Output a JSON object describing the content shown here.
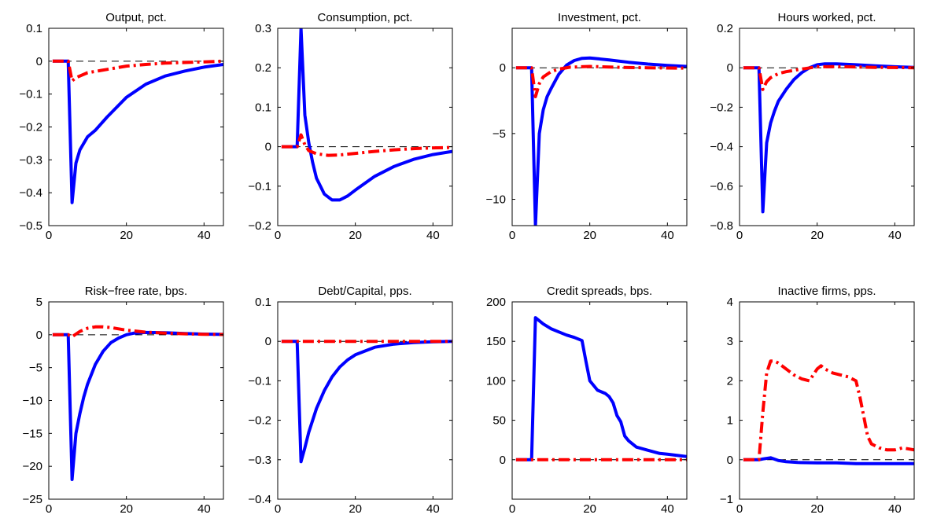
{
  "chart_data": [
    {
      "type": "line",
      "title": "Output, pct.",
      "xlim": [
        0,
        45
      ],
      "ylim": [
        -0.5,
        0.1
      ],
      "xticks": [
        0,
        20,
        40
      ],
      "yticks": [
        -0.5,
        -0.4,
        -0.3,
        -0.2,
        -0.1,
        0,
        0.1
      ],
      "xtick_labels": [
        "0",
        "20",
        "40"
      ],
      "ytick_labels": [
        "−0.5",
        "−0.4",
        "−0.3",
        "−0.2",
        "−0.1",
        "0",
        "0.1"
      ],
      "series": [
        {
          "color": "#0000ff",
          "style": "solid",
          "x": [
            1,
            5,
            6,
            7,
            8,
            10,
            12,
            15,
            20,
            25,
            30,
            35,
            40,
            45
          ],
          "y": [
            0,
            0,
            -0.43,
            -0.31,
            -0.27,
            -0.23,
            -0.21,
            -0.17,
            -0.11,
            -0.07,
            -0.045,
            -0.03,
            -0.018,
            -0.01
          ]
        },
        {
          "color": "#ff0000",
          "style": "dashdot",
          "x": [
            1,
            5,
            6,
            7,
            10,
            15,
            20,
            25,
            30,
            35,
            40,
            45
          ],
          "y": [
            0,
            0,
            -0.06,
            -0.05,
            -0.035,
            -0.025,
            -0.015,
            -0.01,
            -0.006,
            -0.004,
            -0.002,
            0
          ]
        }
      ]
    },
    {
      "type": "line",
      "title": "Consumption, pct.",
      "xlim": [
        0,
        45
      ],
      "ylim": [
        -0.2,
        0.3
      ],
      "xticks": [
        0,
        20,
        40
      ],
      "yticks": [
        -0.2,
        -0.1,
        0,
        0.1,
        0.2,
        0.3
      ],
      "xtick_labels": [
        "0",
        "20",
        "40"
      ],
      "ytick_labels": [
        "−0.2",
        "−0.1",
        "0",
        "0.1",
        "0.2",
        "0.3"
      ],
      "series": [
        {
          "color": "#0000ff",
          "style": "solid",
          "x": [
            1,
            5,
            6,
            7,
            8,
            9,
            10,
            12,
            14,
            16,
            18,
            20,
            25,
            30,
            35,
            40,
            45
          ],
          "y": [
            0,
            0,
            0.3,
            0.08,
            0.01,
            -0.04,
            -0.08,
            -0.12,
            -0.135,
            -0.135,
            -0.125,
            -0.11,
            -0.075,
            -0.05,
            -0.032,
            -0.02,
            -0.012
          ]
        },
        {
          "color": "#ff0000",
          "style": "dashdot",
          "x": [
            1,
            5,
            6,
            7,
            8,
            10,
            13,
            16,
            20,
            25,
            30,
            35,
            40,
            45
          ],
          "y": [
            0,
            0,
            0.03,
            0.005,
            -0.01,
            -0.018,
            -0.022,
            -0.021,
            -0.017,
            -0.012,
            -0.008,
            -0.005,
            -0.003,
            -0.002
          ]
        }
      ]
    },
    {
      "type": "line",
      "title": "Investment, pct.",
      "xlim": [
        0,
        45
      ],
      "ylim": [
        -12,
        3
      ],
      "xticks": [
        0,
        20,
        40
      ],
      "yticks": [
        -10,
        -5,
        0
      ],
      "xtick_labels": [
        "0",
        "20",
        "40"
      ],
      "ytick_labels": [
        "−10",
        "−5",
        "0"
      ],
      "series": [
        {
          "color": "#0000ff",
          "style": "solid",
          "x": [
            1,
            5,
            6,
            7,
            8,
            9,
            10,
            12,
            14,
            16,
            18,
            20,
            25,
            30,
            35,
            40,
            45
          ],
          "y": [
            0,
            0,
            -12,
            -5,
            -3.2,
            -2.2,
            -1.6,
            -0.5,
            0.2,
            0.55,
            0.72,
            0.75,
            0.6,
            0.42,
            0.28,
            0.18,
            0.1
          ]
        },
        {
          "color": "#ff0000",
          "style": "dashdot",
          "x": [
            1,
            5,
            6,
            7,
            8,
            10,
            12,
            15,
            20,
            25,
            30,
            35,
            40,
            45
          ],
          "y": [
            0,
            0,
            -2.2,
            -1.2,
            -0.7,
            -0.3,
            -0.1,
            0.05,
            0.1,
            0.06,
            0.02,
            0,
            -0.02,
            -0.03
          ]
        }
      ]
    },
    {
      "type": "line",
      "title": "Hours worked, pct.",
      "xlim": [
        0,
        45
      ],
      "ylim": [
        -0.8,
        0.2
      ],
      "xticks": [
        0,
        20,
        40
      ],
      "yticks": [
        -0.8,
        -0.6,
        -0.4,
        -0.2,
        0,
        0.2
      ],
      "xtick_labels": [
        "0",
        "20",
        "40"
      ],
      "ytick_labels": [
        "−0.8",
        "−0.6",
        "−0.4",
        "−0.2",
        "0",
        "0.2"
      ],
      "series": [
        {
          "color": "#0000ff",
          "style": "solid",
          "x": [
            1,
            5,
            6,
            7,
            8,
            9,
            10,
            12,
            14,
            16,
            18,
            20,
            22,
            25,
            30,
            35,
            40,
            45
          ],
          "y": [
            0,
            0,
            -0.73,
            -0.38,
            -0.28,
            -0.22,
            -0.17,
            -0.11,
            -0.06,
            -0.025,
            0,
            0.015,
            0.02,
            0.02,
            0.015,
            0.01,
            0.005,
            0.002
          ]
        },
        {
          "color": "#ff0000",
          "style": "dashdot",
          "x": [
            1,
            5,
            6,
            7,
            8,
            10,
            12,
            15,
            20,
            25,
            30,
            35,
            40,
            45
          ],
          "y": [
            0,
            0,
            -0.11,
            -0.07,
            -0.05,
            -0.03,
            -0.02,
            -0.01,
            0.005,
            0.006,
            0.004,
            0.002,
            0.001,
            0
          ]
        }
      ]
    },
    {
      "type": "line",
      "title": "Risk−free rate, bps.",
      "xlim": [
        0,
        45
      ],
      "ylim": [
        -25,
        5
      ],
      "xticks": [
        0,
        20,
        40
      ],
      "yticks": [
        -25,
        -20,
        -15,
        -10,
        -5,
        0,
        5
      ],
      "xtick_labels": [
        "0",
        "20",
        "40"
      ],
      "ytick_labels": [
        "−25",
        "−20",
        "−15",
        "−10",
        "−5",
        "0",
        "5"
      ],
      "series": [
        {
          "color": "#0000ff",
          "style": "solid",
          "x": [
            1,
            5,
            6,
            7,
            8,
            9,
            10,
            12,
            14,
            16,
            18,
            20,
            22,
            25,
            30,
            35,
            40,
            45
          ],
          "y": [
            0,
            0,
            -22,
            -15,
            -12,
            -9.5,
            -7.5,
            -4.5,
            -2.5,
            -1.2,
            -0.5,
            0,
            0.25,
            0.35,
            0.3,
            0.2,
            0.1,
            0.05
          ]
        },
        {
          "color": "#ff0000",
          "style": "dashdot",
          "x": [
            1,
            5,
            6,
            8,
            10,
            12,
            14,
            16,
            18,
            20,
            25,
            30,
            35,
            40,
            45
          ],
          "y": [
            0,
            0,
            -0.3,
            0.5,
            1.0,
            1.2,
            1.2,
            1.1,
            0.9,
            0.7,
            0.4,
            0.25,
            0.15,
            0.08,
            0.04
          ]
        }
      ]
    },
    {
      "type": "line",
      "title": "Debt/Capital, pps.",
      "xlim": [
        0,
        45
      ],
      "ylim": [
        -0.4,
        0.1
      ],
      "xticks": [
        0,
        20,
        40
      ],
      "yticks": [
        -0.4,
        -0.3,
        -0.2,
        -0.1,
        0,
        0.1
      ],
      "xtick_labels": [
        "0",
        "20",
        "40"
      ],
      "ytick_labels": [
        "−0.4",
        "−0.3",
        "−0.2",
        "−0.1",
        "0",
        "0.1"
      ],
      "series": [
        {
          "color": "#0000ff",
          "style": "solid",
          "x": [
            1,
            5,
            6,
            7,
            8,
            10,
            12,
            14,
            16,
            18,
            20,
            25,
            30,
            35,
            40,
            45
          ],
          "y": [
            0,
            0,
            -0.305,
            -0.27,
            -0.23,
            -0.17,
            -0.125,
            -0.09,
            -0.065,
            -0.047,
            -0.034,
            -0.015,
            -0.007,
            -0.003,
            -0.001,
            0
          ]
        },
        {
          "color": "#ff0000",
          "style": "dashdot",
          "x": [
            1,
            5,
            10,
            20,
            30,
            40,
            45
          ],
          "y": [
            0,
            0,
            0,
            0,
            0,
            0,
            0
          ]
        }
      ]
    },
    {
      "type": "line",
      "title": "Credit spreads, bps.",
      "xlim": [
        0,
        45
      ],
      "ylim": [
        -50,
        200
      ],
      "xticks": [
        0,
        20,
        40
      ],
      "yticks": [
        0,
        50,
        100,
        150,
        200
      ],
      "xtick_labels": [
        "0",
        "20",
        "40"
      ],
      "ytick_labels": [
        "0",
        "50",
        "100",
        "150",
        "200"
      ],
      "series": [
        {
          "color": "#0000ff",
          "style": "solid",
          "x": [
            1,
            5,
            6,
            8,
            10,
            12,
            14,
            16,
            18,
            19,
            20,
            21,
            22,
            24,
            25,
            26,
            27,
            28,
            29,
            30,
            32,
            35,
            38,
            40,
            45
          ],
          "y": [
            0,
            0,
            180,
            172,
            166,
            162,
            158,
            155,
            151,
            125,
            100,
            94,
            88,
            84,
            80,
            72,
            56,
            48,
            30,
            24,
            16,
            12,
            8,
            7,
            4
          ]
        },
        {
          "color": "#ff0000",
          "style": "dashdot",
          "x": [
            1,
            5,
            10,
            20,
            30,
            40,
            45
          ],
          "y": [
            0,
            0,
            0,
            0,
            0,
            0,
            0
          ]
        }
      ]
    },
    {
      "type": "line",
      "title": "Inactive firms, pps.",
      "xlim": [
        0,
        45
      ],
      "ylim": [
        -1,
        4
      ],
      "xticks": [
        0,
        20,
        40
      ],
      "yticks": [
        -1,
        0,
        1,
        2,
        3,
        4
      ],
      "xtick_labels": [
        "0",
        "20",
        "40"
      ],
      "ytick_labels": [
        "−1",
        "0",
        "1",
        "2",
        "3",
        "4"
      ],
      "series": [
        {
          "color": "#0000ff",
          "style": "solid",
          "x": [
            1,
            5,
            6,
            8,
            10,
            12,
            15,
            20,
            25,
            30,
            35,
            40,
            45
          ],
          "y": [
            0,
            0,
            0.02,
            0.05,
            -0.02,
            -0.05,
            -0.07,
            -0.08,
            -0.08,
            -0.1,
            -0.1,
            -0.1,
            -0.1
          ]
        },
        {
          "color": "#ff0000",
          "style": "dashdot",
          "x": [
            1,
            5,
            6,
            7,
            8,
            9,
            10,
            12,
            14,
            16,
            18,
            20,
            21,
            22,
            24,
            26,
            28,
            30,
            31,
            32,
            33,
            34,
            36,
            38,
            40,
            42,
            45
          ],
          "y": [
            0,
            0,
            1.2,
            2.2,
            2.5,
            2.5,
            2.45,
            2.3,
            2.15,
            2.05,
            2.0,
            2.3,
            2.38,
            2.3,
            2.2,
            2.15,
            2.1,
            2.0,
            1.6,
            1.1,
            0.6,
            0.4,
            0.3,
            0.25,
            0.25,
            0.3,
            0.25
          ]
        }
      ]
    }
  ]
}
